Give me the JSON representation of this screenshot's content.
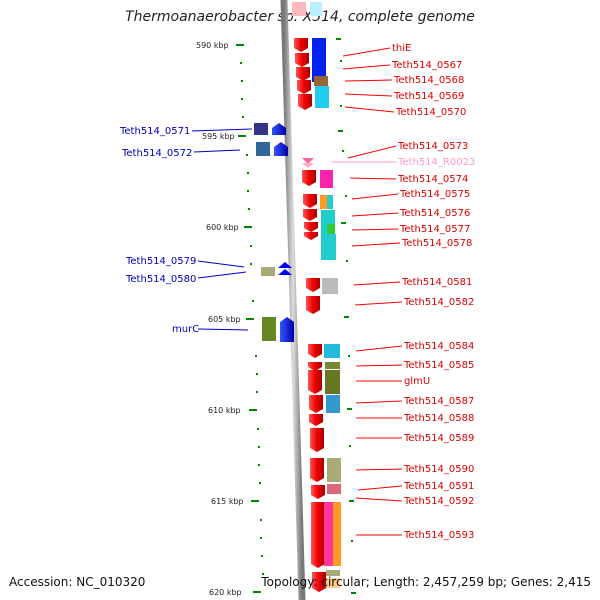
{
  "title": "Thermoanaerobacter sp. X514, complete genome",
  "footer": {
    "accession": "Accession: NC_010320",
    "summary": "Topology: circular; Length: 2,457,259 bp; Genes: 2,415"
  },
  "colors": {
    "forward_gene": "#ff0000",
    "reverse_gene": "#0000cc",
    "rna_gene": "#ff99cc",
    "backbone": "#999999",
    "tick": "#008800"
  },
  "ticks": [
    "590 kbp",
    "595 kbp",
    "600 kbp",
    "605 kbp",
    "610 kbp",
    "615 kbp",
    "620 kbp"
  ],
  "right_labels": [
    "thiE",
    "Teth514_0567",
    "Teth514_0568",
    "Teth514_0569",
    "Teth514_0570",
    "Teth514_0573",
    "Teth514_R0023",
    "Teth514_0574",
    "Teth514_0575",
    "Teth514_0576",
    "Teth514_0577",
    "Teth514_0578",
    "Teth514_0581",
    "Teth514_0582",
    "Teth514_0584",
    "Teth514_0585",
    "glmU",
    "Teth514_0587",
    "Teth514_0588",
    "Teth514_0589",
    "Teth514_0590",
    "Teth514_0591",
    "Teth514_0592",
    "Teth514_0593"
  ],
  "left_labels": [
    "Teth514_0571",
    "Teth514_0572",
    "Teth514_0579",
    "Teth514_0580",
    "murC"
  ]
}
